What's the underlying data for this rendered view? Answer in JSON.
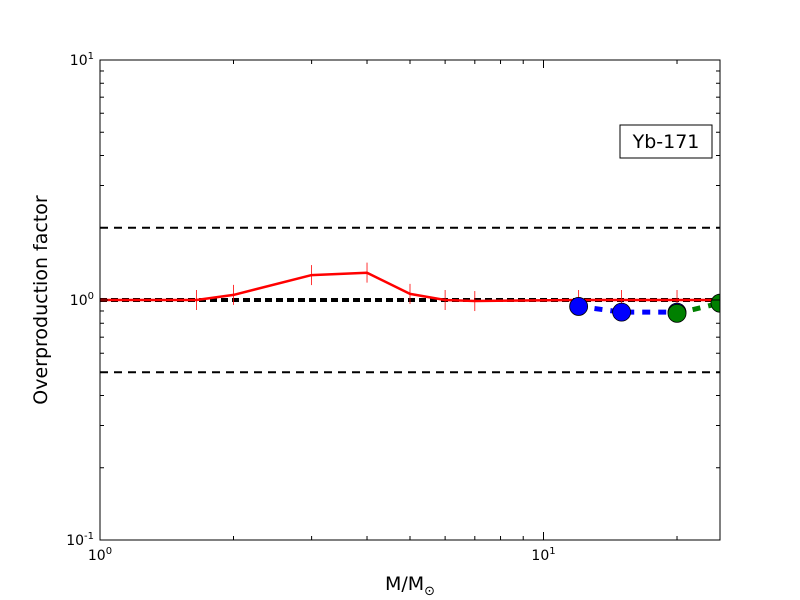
{
  "chart_data": {
    "type": "line",
    "xlabel_main": "M/M",
    "xlabel_sub": "⊙",
    "ylabel": "Overproduction factor",
    "annotation": "Yb-171",
    "x_scale": "log",
    "y_scale": "log",
    "xlim": [
      1.0,
      25.0
    ],
    "ylim": [
      0.1,
      10.0
    ],
    "x_ticks": [
      {
        "value": 1,
        "base": "10",
        "exp": "0"
      },
      {
        "value": 10,
        "base": "10",
        "exp": "1"
      }
    ],
    "y_ticks": [
      {
        "value": 0.1,
        "base": "10",
        "exp": "-1"
      },
      {
        "value": 1,
        "base": "10",
        "exp": "0"
      },
      {
        "value": 10,
        "base": "10",
        "exp": "1"
      }
    ],
    "reference_lines": [
      {
        "y": 2.0,
        "style": "dashed",
        "color": "#000000",
        "weight": "thin"
      },
      {
        "y": 1.0,
        "style": "dashed",
        "color": "#000000",
        "weight": "thick"
      },
      {
        "y": 0.5,
        "style": "dashed",
        "color": "#000000",
        "weight": "thin"
      }
    ],
    "series": [
      {
        "style": "solid",
        "color": "#ff0000",
        "marker": "vline",
        "x": [
          1.0,
          1.65,
          2.0,
          3.0,
          4.0,
          5.0,
          6.0,
          7.0,
          12.0,
          15.0,
          20.0,
          25.0
        ],
        "y": [
          1.0,
          1.0,
          1.05,
          1.27,
          1.3,
          1.06,
          1.0,
          0.99,
          1.0,
          1.0,
          1.0,
          1.0
        ]
      },
      {
        "style": "dashed",
        "color": "#0000ff",
        "marker": "circle",
        "x": [
          12.0,
          15.0,
          20.0
        ],
        "y": [
          0.94,
          0.89,
          0.89
        ]
      },
      {
        "style": "dashed",
        "color": "#008000",
        "marker": "circle",
        "x": [
          20.0,
          25.0
        ],
        "y": [
          0.88,
          0.97
        ]
      }
    ]
  }
}
